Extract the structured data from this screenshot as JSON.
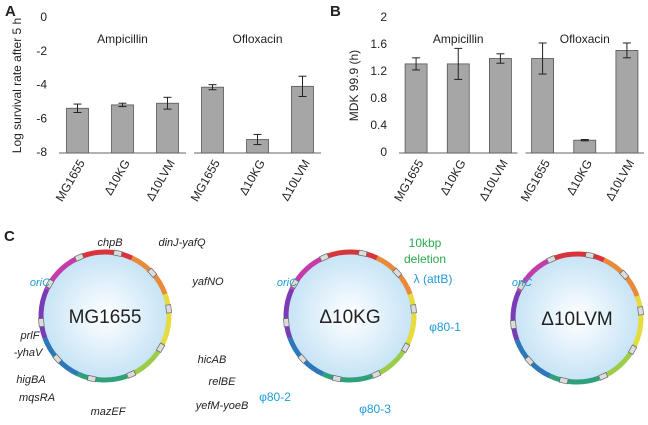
{
  "chart_data": [
    {
      "type": "bar",
      "panel": "A",
      "y_label": "Log survival rate after 5 h",
      "group_labels": [
        "Ampicillin",
        "Ofloxacin"
      ],
      "categories": [
        "MG1655",
        "Δ10KG",
        "Δ10LVM",
        "MG1655",
        "Δ10KG",
        "Δ10LVM"
      ],
      "values": [
        -5.35,
        -5.15,
        -5.05,
        -4.1,
        -7.2,
        -4.05
      ],
      "errors": [
        0.25,
        0.1,
        0.35,
        0.15,
        0.3,
        0.6
      ],
      "color": "#a6a6a6",
      "ylim": [
        -8,
        0
      ],
      "yticks": [
        0,
        -2,
        -4,
        -6,
        -8
      ]
    },
    {
      "type": "bar",
      "panel": "B",
      "y_label": "MDK 99.9 (h)",
      "group_labels": [
        "Ampicillin",
        "Ofloxacin"
      ],
      "categories": [
        "MG1655",
        "Δ10KG",
        "Δ10LVM",
        "MG1655",
        "Δ10KG",
        "Δ10LVM"
      ],
      "values": [
        1.32,
        1.32,
        1.4,
        1.4,
        0.19,
        1.52
      ],
      "errors": [
        0.09,
        0.23,
        0.07,
        0.23,
        0.01,
        0.11
      ],
      "color": "#a6a6a6",
      "ylim": [
        0,
        2
      ],
      "yticks": [
        0,
        0.4,
        0.8,
        1.2,
        1.6,
        2
      ]
    }
  ],
  "diagram": {
    "panel": "C",
    "genomes": [
      "MG1655",
      "Δ10KG",
      "Δ10LVM"
    ],
    "genes": [
      "chpB",
      "dinJ-yafQ",
      "yafNO",
      "prlF",
      "-yhaV",
      "higBA",
      "mqsRA",
      "mazEF",
      "hicAB",
      "relBE",
      "yefM-yoeB"
    ],
    "origin": "oriC",
    "deletion": [
      "10kbp",
      "deletion"
    ],
    "sites": [
      "λ (attB)",
      "φ80-1",
      "φ80-2",
      "φ80-3"
    ]
  }
}
